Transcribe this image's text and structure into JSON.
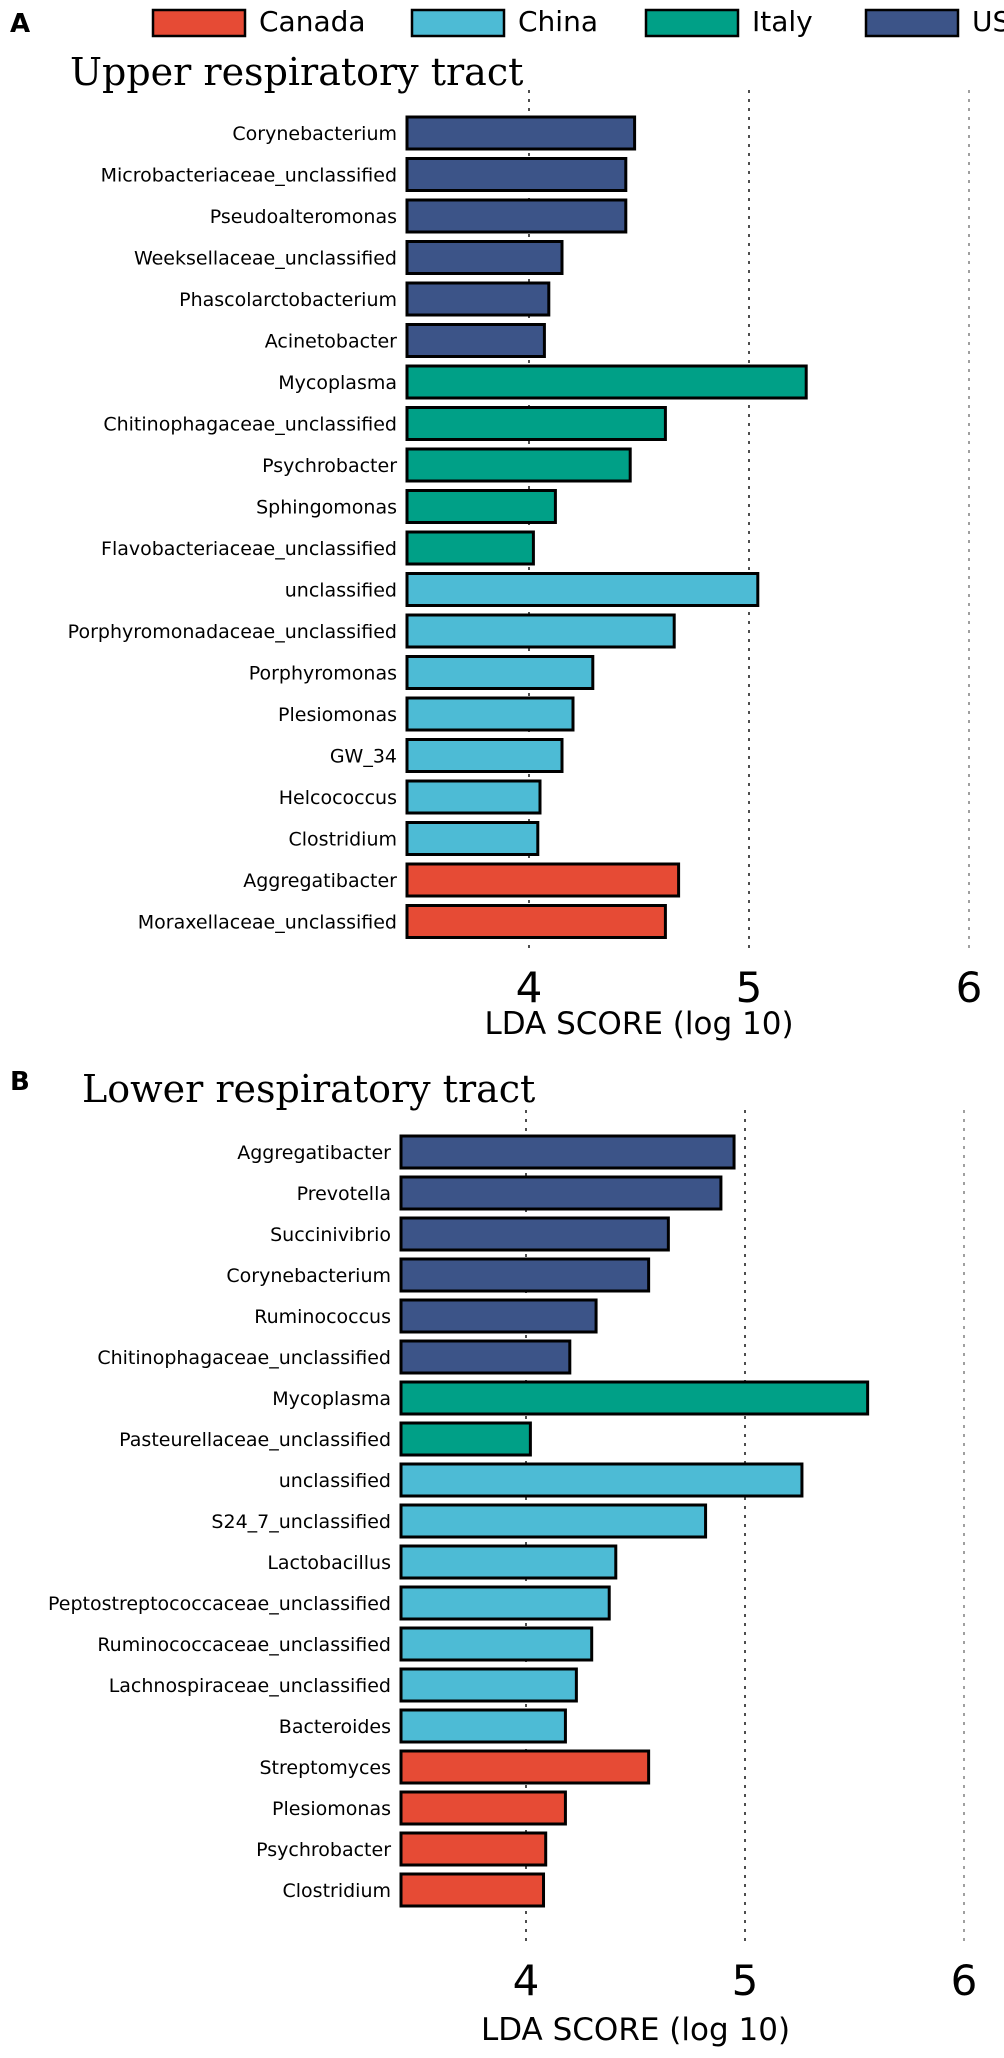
{
  "legend": [
    {
      "label": "Canada",
      "color": "#E64B35"
    },
    {
      "label": "China",
      "color": "#4DBBD5"
    },
    {
      "label": "Italy",
      "color": "#00A087"
    },
    {
      "label": "USA",
      "color": "#3C5488"
    }
  ],
  "chart_data": [
    {
      "type": "bar",
      "orientation": "horizontal",
      "panel_label": "A",
      "title": "Upper respiratory tract",
      "xlabel": "LDA SCORE (log 10)",
      "xlim": [
        3.45,
        6.0
      ],
      "xticks": [
        4,
        5,
        6
      ],
      "categories": [
        "Corynebacterium",
        "Microbacteriaceae_unclassified",
        "Pseudoalteromonas",
        "Weeksellaceae_unclassified",
        "Phascolarctobacterium",
        "Acinetobacter",
        "Mycoplasma",
        "Chitinophagaceae_unclassified",
        "Psychrobacter",
        "Sphingomonas",
        "Flavobacteriaceae_unclassified",
        "unclassified",
        "Porphyromonadaceae_unclassified",
        "Porphyromonas",
        "Plesiomonas",
        "GW_34",
        "Helcococcus",
        "Clostridium",
        "Aggregatibacter",
        "Moraxellaceae_unclassified"
      ],
      "values": [
        4.48,
        4.44,
        4.44,
        4.15,
        4.09,
        4.07,
        5.26,
        4.62,
        4.46,
        4.12,
        4.02,
        5.04,
        4.66,
        4.29,
        4.2,
        4.15,
        4.05,
        4.04,
        4.68,
        4.62
      ],
      "groups": [
        "USA",
        "USA",
        "USA",
        "USA",
        "USA",
        "USA",
        "Italy",
        "Italy",
        "Italy",
        "Italy",
        "Italy",
        "China",
        "China",
        "China",
        "China",
        "China",
        "China",
        "China",
        "Canada",
        "Canada"
      ]
    },
    {
      "type": "bar",
      "orientation": "horizontal",
      "panel_label": "B",
      "title": "Lower respiratory tract",
      "xlabel": "LDA SCORE (log 10)",
      "xlim": [
        3.42,
        6.0
      ],
      "xticks": [
        4,
        5,
        6
      ],
      "categories": [
        "Aggregatibacter",
        "Prevotella",
        "Succinivibrio",
        "Corynebacterium",
        "Ruminococcus",
        "Chitinophagaceae_unclassified",
        "Mycoplasma",
        "Pasteurellaceae_unclassified",
        "unclassified",
        "S24_7_unclassified",
        "Lactobacillus",
        "Peptostreptococcaceae_unclassified",
        "Ruminococcaceae_unclassified",
        "Lachnospiraceae_unclassified",
        "Bacteroides",
        "Streptomyces",
        "Plesiomonas",
        "Psychrobacter",
        "Clostridium"
      ],
      "values": [
        4.95,
        4.89,
        4.65,
        4.56,
        4.32,
        4.2,
        5.56,
        4.02,
        5.26,
        4.82,
        4.41,
        4.38,
        4.3,
        4.23,
        4.18,
        4.56,
        4.18,
        4.09,
        4.08
      ],
      "groups": [
        "USA",
        "USA",
        "USA",
        "USA",
        "USA",
        "USA",
        "Italy",
        "Italy",
        "China",
        "China",
        "China",
        "China",
        "China",
        "China",
        "China",
        "Canada",
        "Canada",
        "Canada",
        "Canada"
      ]
    }
  ]
}
